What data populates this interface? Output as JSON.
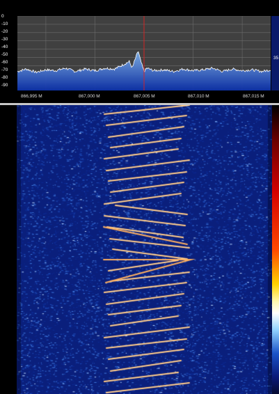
{
  "spectrum": {
    "y_ticks": [
      "0",
      "-10",
      "-20",
      "-30",
      "-40",
      "-50",
      "-60",
      "-70",
      "-80",
      "-90"
    ],
    "x_ticks": [
      "866,995 M",
      "867,000 M",
      "867,005 M",
      "867,010 M",
      "867,015 M"
    ],
    "level_readout": "35",
    "colors": {
      "plot_bg": "#404040",
      "grid": "#6c6c6c",
      "fill_top": "#7fb0e6",
      "fill_bottom": "#0b2fa8",
      "trace": "#ffffff",
      "marker": "#e02020"
    }
  },
  "waterfall": {
    "colors": {
      "background": "#0a1f7c",
      "noise": "#3f7be0",
      "signal": "#ffb060",
      "signal_core": "#fff0c0"
    }
  },
  "chart_data": {
    "type": "line",
    "xlabel": "",
    "ylabel": "",
    "x_unit": "MHz",
    "xlim": [
      866.9921,
      867.0179
    ],
    "ylim": [
      -90,
      0
    ],
    "x_ticks": [
      866.995,
      867.0,
      867.005,
      867.01,
      867.015
    ],
    "y_ticks": [
      0,
      -10,
      -20,
      -30,
      -40,
      -50,
      -60,
      -70,
      -80,
      -90
    ],
    "marker_frequency": 867.005,
    "series": [
      {
        "x": [
          866.9921,
          866.993,
          866.994,
          866.995,
          866.996,
          866.997,
          866.998,
          866.999,
          867.0,
          867.001,
          867.002,
          867.003,
          867.0035,
          867.0038,
          867.0041,
          867.0044,
          867.0047,
          867.005,
          867.0053,
          867.006,
          867.007,
          867.008,
          867.009,
          867.01,
          867.011,
          867.012,
          867.013,
          867.014,
          867.015,
          867.016,
          867.017,
          867.0179
        ],
        "y": [
          -67,
          -64,
          -68,
          -65,
          -66,
          -63,
          -67,
          -64,
          -66,
          -63,
          -64,
          -58,
          -55,
          -63,
          -52,
          -42,
          -56,
          -67,
          -63,
          -66,
          -65,
          -67,
          -64,
          -66,
          -65,
          -63,
          -67,
          -64,
          -66,
          -65,
          -67,
          -65
        ]
      }
    ]
  }
}
